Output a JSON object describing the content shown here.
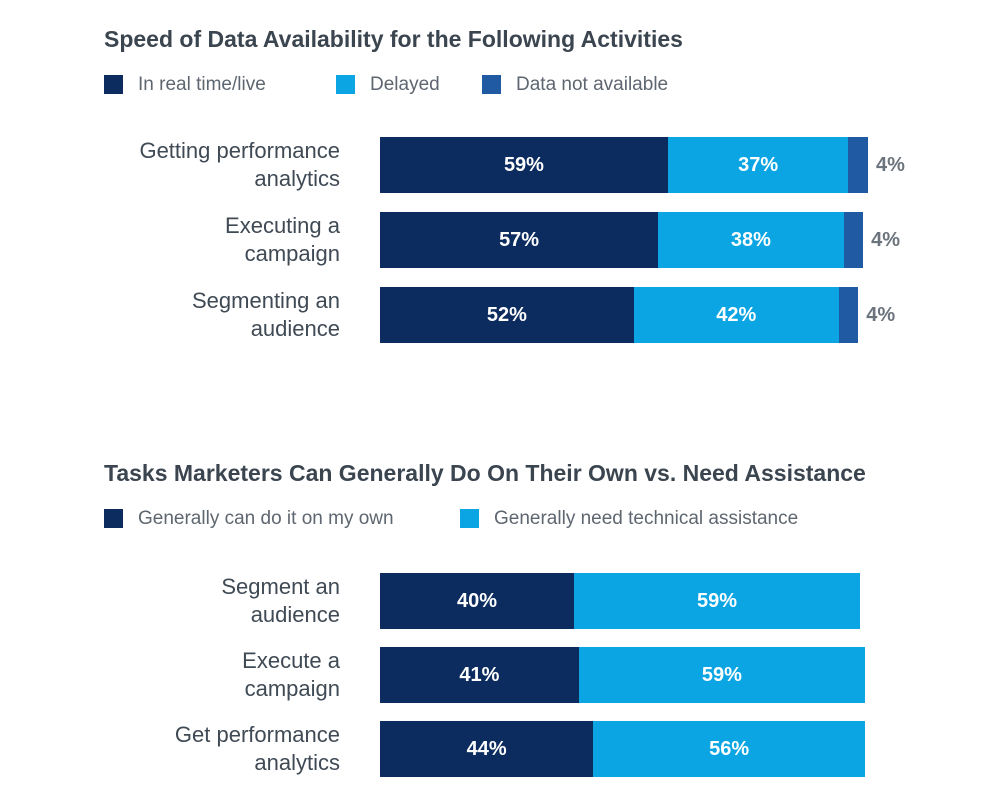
{
  "colors": {
    "dark": "#0c2b5e",
    "light": "#0aa5e2",
    "mid": "#205aa2"
  },
  "chart_data": [
    {
      "type": "bar",
      "orientation": "horizontal",
      "stacked": true,
      "title": "Speed of Data Availability for the Following Activities",
      "categories": [
        [
          "Getting performance",
          "analytics"
        ],
        [
          "Executing a",
          "campaign"
        ],
        [
          "Segmenting an",
          "audience"
        ]
      ],
      "series": [
        {
          "name": "In real time/live",
          "color": "#0c2b5e",
          "values": [
            59,
            57,
            52
          ],
          "labels": [
            "59%",
            "57%",
            "52%"
          ]
        },
        {
          "name": "Delayed",
          "color": "#0aa5e2",
          "values": [
            37,
            38,
            42
          ],
          "labels": [
            "37%",
            "38%",
            "42%"
          ]
        },
        {
          "name": "Data not available",
          "color": "#205aa2",
          "values": [
            4,
            4,
            4
          ],
          "labels": [
            "4%",
            "4%",
            "4%"
          ]
        }
      ],
      "xlim": [
        0,
        100
      ],
      "legend": "top-left"
    },
    {
      "type": "bar",
      "orientation": "horizontal",
      "stacked": true,
      "title": "Tasks Marketers Can Generally Do On Their Own vs. Need Assistance",
      "categories": [
        [
          "Segment an",
          "audience"
        ],
        [
          "Execute a",
          "campaign"
        ],
        [
          "Get performance",
          "analytics"
        ]
      ],
      "series": [
        {
          "name": "Generally can do it on my own",
          "color": "#0c2b5e",
          "values": [
            40,
            41,
            44
          ],
          "labels": [
            "40%",
            "41%",
            "44%"
          ]
        },
        {
          "name": "Generally need technical assistance",
          "color": "#0aa5e2",
          "values": [
            59,
            59,
            56
          ],
          "labels": [
            "59%",
            "59%",
            "56%"
          ]
        }
      ],
      "xlim": [
        0,
        100
      ],
      "legend": "top-left"
    }
  ]
}
